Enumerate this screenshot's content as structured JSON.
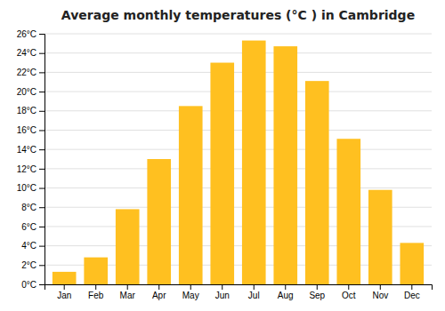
{
  "chart_data": {
    "type": "bar",
    "title": "Average monthly temperatures (°C ) in Cambridge",
    "categories": [
      "Jan",
      "Feb",
      "Mar",
      "Apr",
      "May",
      "Jun",
      "Jul",
      "Aug",
      "Sep",
      "Oct",
      "Nov",
      "Dec"
    ],
    "values": [
      1.3,
      2.8,
      7.8,
      13.0,
      18.5,
      23.0,
      25.3,
      24.7,
      21.1,
      15.1,
      9.8,
      4.3
    ],
    "color": "#FFC020",
    "ylim": [
      0,
      26
    ],
    "yticks": [
      {
        "value": 0,
        "label": "0°C"
      },
      {
        "value": 2,
        "label": "2°C"
      },
      {
        "value": 4,
        "label": "4°C"
      },
      {
        "value": 6,
        "label": "6°C"
      },
      {
        "value": 8,
        "label": "8°C"
      },
      {
        "value": 10,
        "label": "10°C"
      },
      {
        "value": 12,
        "label": "12°C"
      },
      {
        "value": 14,
        "label": "14°C"
      },
      {
        "value": 16,
        "label": "16°C"
      },
      {
        "value": 18,
        "label": "18°C"
      },
      {
        "value": 20,
        "label": "20°C"
      },
      {
        "value": 22,
        "label": "22°C"
      },
      {
        "value": 24,
        "label": "24°C"
      },
      {
        "value": 26,
        "label": "26°C"
      }
    ],
    "grid": true
  }
}
